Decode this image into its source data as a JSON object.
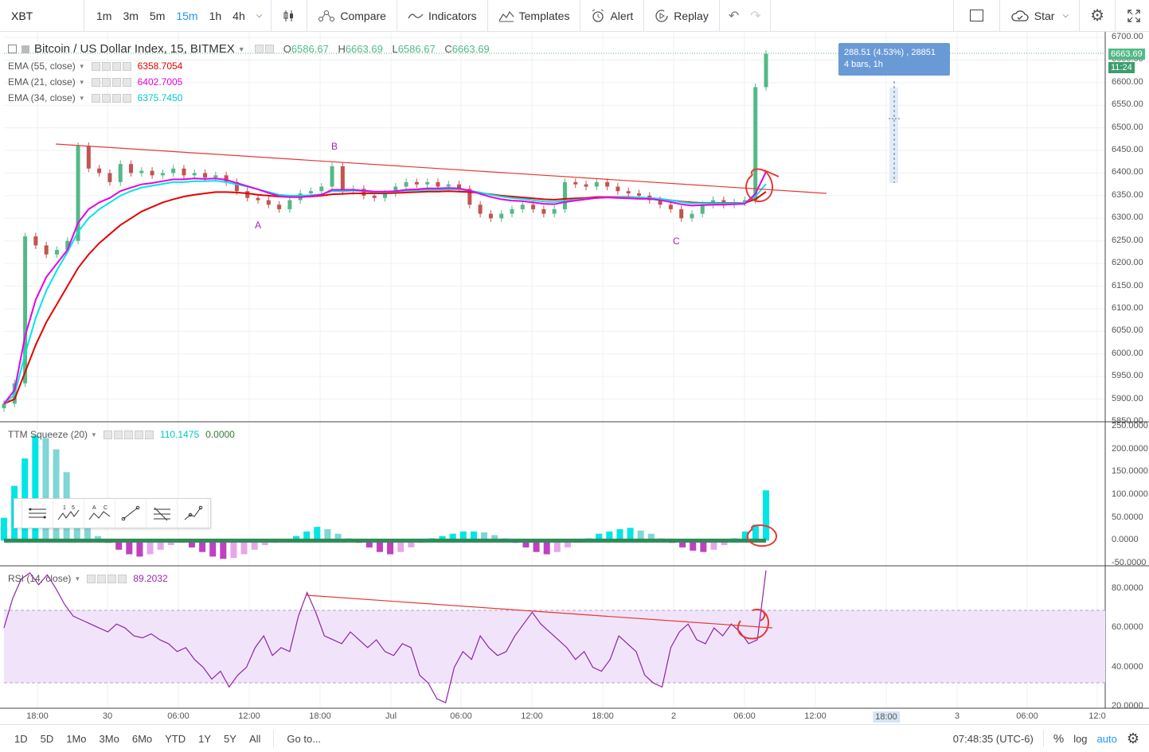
{
  "toolbar": {
    "symbol": "XBT",
    "intervals": [
      "1m",
      "3m",
      "5m",
      "15m",
      "1h",
      "4h"
    ],
    "active_interval": "15m",
    "compare_label": "Compare",
    "indicators_label": "Indicators",
    "templates_label": "Templates",
    "alert_label": "Alert",
    "replay_label": "Replay",
    "star_label": "Star",
    "icons": {
      "dropdown": "chevron-down-icon",
      "chart_type": "candles-icon",
      "compare": "compare-icon",
      "indicators": "indicators-icon",
      "templates": "templates-icon",
      "alert": "alarm-icon",
      "replay": "replay-icon",
      "undo": "undo-icon",
      "redo": "redo-icon",
      "layout": "layout-icon",
      "star": "cloud-icon",
      "settings": "gear-icon",
      "fullscreen": "fullscreen-icon"
    }
  },
  "main_pane": {
    "title": "Bitcoin / US Dollar Index, 15, BITMEX",
    "ohlc": {
      "o_label": "O",
      "o": "6586.67",
      "h_label": "H",
      "h": "6663.69",
      "l_label": "L",
      "l": "6586.67",
      "c_label": "C",
      "c": "6663.69"
    },
    "indicators": [
      {
        "name": "EMA (55, close)",
        "value": "6358.7054",
        "color": "#e60000"
      },
      {
        "name": "EMA (21, close)",
        "value": "6402.7005",
        "color": "#e600e6"
      },
      {
        "name": "EMA (34, close)",
        "value": "6375.7450",
        "color": "#00e6e6"
      }
    ],
    "annotations": [
      "A",
      "B",
      "C"
    ],
    "price_labels": [
      "6700.00",
      "6650.00",
      "6600.00",
      "6550.00",
      "6500.00",
      "6450.00",
      "6400.00",
      "6350.00",
      "6300.00",
      "6250.00",
      "6200.00",
      "6150.00",
      "6100.00",
      "6050.00",
      "6000.00",
      "5950.00",
      "5900.00",
      "5850.00"
    ],
    "last_price": "6663.69",
    "countdown": "11:24",
    "measure": {
      "line1": "288.51 (4.53%) , 28851",
      "line2": "4 bars, 1h"
    }
  },
  "squeeze_pane": {
    "name": "TTM Squeeze (20)",
    "value1": "110.1475",
    "value2": "0.0000",
    "price_labels": [
      "250.0000",
      "200.0000",
      "150.0000",
      "100.0000",
      "50.0000",
      "0.0000",
      "-50.0000"
    ]
  },
  "rsi_pane": {
    "name": "RSI (14, close)",
    "value": "89.2032",
    "price_labels": [
      "80.0000",
      "60.0000",
      "40.0000",
      "20.0000"
    ]
  },
  "time_axis": {
    "labels": [
      "18:00",
      "30",
      "06:00",
      "12:00",
      "18:00",
      "Jul",
      "06:00",
      "12:00",
      "18:00",
      "2",
      "06:00",
      "12:00",
      "18:00",
      "3",
      "06:00",
      "12:0"
    ],
    "highlighted": "18:00"
  },
  "drawing_palette": {
    "tools": [
      "horizontal-lines-icon",
      "wave-15-icon",
      "wave-ac-icon",
      "trendline-icon",
      "fib-icon",
      "path-icon"
    ],
    "labels": [
      "1",
      "5",
      "A",
      "C"
    ]
  },
  "bottom_bar": {
    "ranges": [
      "1D",
      "5D",
      "1Mo",
      "3Mo",
      "6Mo",
      "YTD",
      "1Y",
      "5Y",
      "All"
    ],
    "goto_label": "Go to...",
    "clock": "07:48:35 (UTC-6)",
    "percent_label": "%",
    "log_label": "log",
    "auto_label": "auto"
  },
  "chart_data": [
    {
      "type": "candlestick",
      "title": "Bitcoin / US Dollar Index, 15, BITMEX",
      "ylim": [
        5850,
        6700
      ],
      "x_labels": [
        "18:00",
        "30",
        "06:00",
        "12:00",
        "18:00",
        "Jul",
        "06:00",
        "12:00",
        "18:00",
        "2",
        "06:00"
      ],
      "close": [
        5890,
        5935,
        6260,
        6240,
        6220,
        6230,
        6250,
        6460,
        6410,
        6400,
        6380,
        6420,
        6400,
        6405,
        6395,
        6400,
        6410,
        6395,
        6400,
        6390,
        6395,
        6380,
        6360,
        6345,
        6340,
        6330,
        6320,
        6340,
        6355,
        6360,
        6370,
        6415,
        6360,
        6365,
        6350,
        6345,
        6355,
        6370,
        6380,
        6375,
        6380,
        6370,
        6375,
        6365,
        6330,
        6310,
        6300,
        6310,
        6320,
        6330,
        6320,
        6310,
        6320,
        6380,
        6375,
        6370,
        6380,
        6370,
        6360,
        6355,
        6350,
        6340,
        6330,
        6320,
        6300,
        6310,
        6330,
        6340,
        6330,
        6335,
        6340,
        6590,
        6663.69
      ],
      "ema_55": [
        5890,
        5900,
        5960,
        6020,
        6070,
        6110,
        6150,
        6190,
        6220,
        6245,
        6265,
        6285,
        6300,
        6315,
        6325,
        6335,
        6342,
        6348,
        6352,
        6355,
        6358,
        6358,
        6357,
        6355,
        6352,
        6350,
        6348,
        6347,
        6347,
        6348,
        6350,
        6353,
        6354,
        6355,
        6355,
        6355,
        6355,
        6356,
        6357,
        6358,
        6359,
        6359,
        6360,
        6359,
        6358,
        6356,
        6353,
        6350,
        6348,
        6346,
        6344,
        6342,
        6341,
        6343,
        6344,
        6345,
        6347,
        6347,
        6347,
        6347,
        6346,
        6345,
        6343,
        6340,
        6337,
        6335,
        6334,
        6334,
        6334,
        6334,
        6334,
        6342,
        6358.7054
      ],
      "ema_34": [
        5890,
        5910,
        6000,
        6080,
        6140,
        6185,
        6225,
        6270,
        6300,
        6320,
        6335,
        6350,
        6360,
        6368,
        6372,
        6376,
        6380,
        6380,
        6382,
        6382,
        6383,
        6380,
        6375,
        6370,
        6364,
        6358,
        6352,
        6350,
        6350,
        6351,
        6353,
        6360,
        6360,
        6361,
        6360,
        6358,
        6358,
        6359,
        6361,
        6362,
        6363,
        6363,
        6364,
        6364,
        6361,
        6357,
        6352,
        6348,
        6345,
        6343,
        6340,
        6337,
        6336,
        6339,
        6341,
        6343,
        6345,
        6346,
        6346,
        6346,
        6346,
        6345,
        6343,
        6340,
        6336,
        6333,
        6333,
        6333,
        6333,
        6333,
        6334,
        6348,
        6375.745
      ],
      "ema_21": [
        5890,
        5920,
        6040,
        6120,
        6170,
        6200,
        6230,
        6290,
        6320,
        6335,
        6345,
        6360,
        6368,
        6375,
        6378,
        6382,
        6386,
        6386,
        6388,
        6387,
        6388,
        6385,
        6378,
        6371,
        6364,
        6356,
        6349,
        6347,
        6347,
        6349,
        6352,
        6363,
        6363,
        6363,
        6361,
        6359,
        6359,
        6360,
        6363,
        6364,
        6366,
        6366,
        6367,
        6366,
        6361,
        6354,
        6347,
        6342,
        6339,
        6338,
        6335,
        6332,
        6331,
        6336,
        6339,
        6342,
        6345,
        6346,
        6345,
        6344,
        6343,
        6343,
        6340,
        6336,
        6331,
        6328,
        6329,
        6330,
        6330,
        6331,
        6332,
        6354,
        6402.7005
      ]
    },
    {
      "type": "bar",
      "title": "TTM Squeeze (20)",
      "ylim": [
        -50,
        250
      ],
      "values": [
        50,
        120,
        180,
        230,
        225,
        200,
        150,
        90,
        40,
        10,
        -5,
        -20,
        -30,
        -35,
        -30,
        -20,
        -10,
        -5,
        -15,
        -25,
        -35,
        -40,
        -38,
        -30,
        -20,
        -10,
        -5,
        0,
        10,
        20,
        30,
        25,
        15,
        5,
        -5,
        -15,
        -25,
        -30,
        -25,
        -15,
        -5,
        5,
        10,
        15,
        20,
        20,
        18,
        12,
        5,
        -5,
        -15,
        -25,
        -30,
        -25,
        -15,
        -5,
        5,
        15,
        20,
        25,
        28,
        22,
        15,
        5,
        -5,
        -15,
        -22,
        -25,
        -20,
        -10,
        5,
        20,
        35,
        110.1475
      ],
      "last_values": [
        110.1475,
        0
      ]
    },
    {
      "type": "line",
      "title": "RSI (14, close)",
      "ylim": [
        20,
        90
      ],
      "bands": [
        30,
        70
      ],
      "values": [
        60,
        75,
        85,
        88,
        82,
        87,
        80,
        72,
        66,
        64,
        62,
        60,
        58,
        62,
        60,
        56,
        55,
        57,
        54,
        52,
        48,
        50,
        44,
        40,
        34,
        38,
        30,
        36,
        40,
        50,
        56,
        46,
        50,
        48,
        66,
        78,
        68,
        56,
        54,
        52,
        58,
        54,
        50,
        54,
        48,
        46,
        52,
        50,
        36,
        32,
        24,
        22,
        40,
        48,
        44,
        56,
        50,
        46,
        48,
        56,
        62,
        68,
        62,
        58,
        54,
        50,
        44,
        48,
        40,
        38,
        44,
        56,
        52,
        48,
        36,
        32,
        30,
        50,
        58,
        62,
        54,
        52,
        60,
        56,
        62,
        58,
        52,
        54,
        89.2032
      ],
      "last_value": 89.2032
    }
  ]
}
